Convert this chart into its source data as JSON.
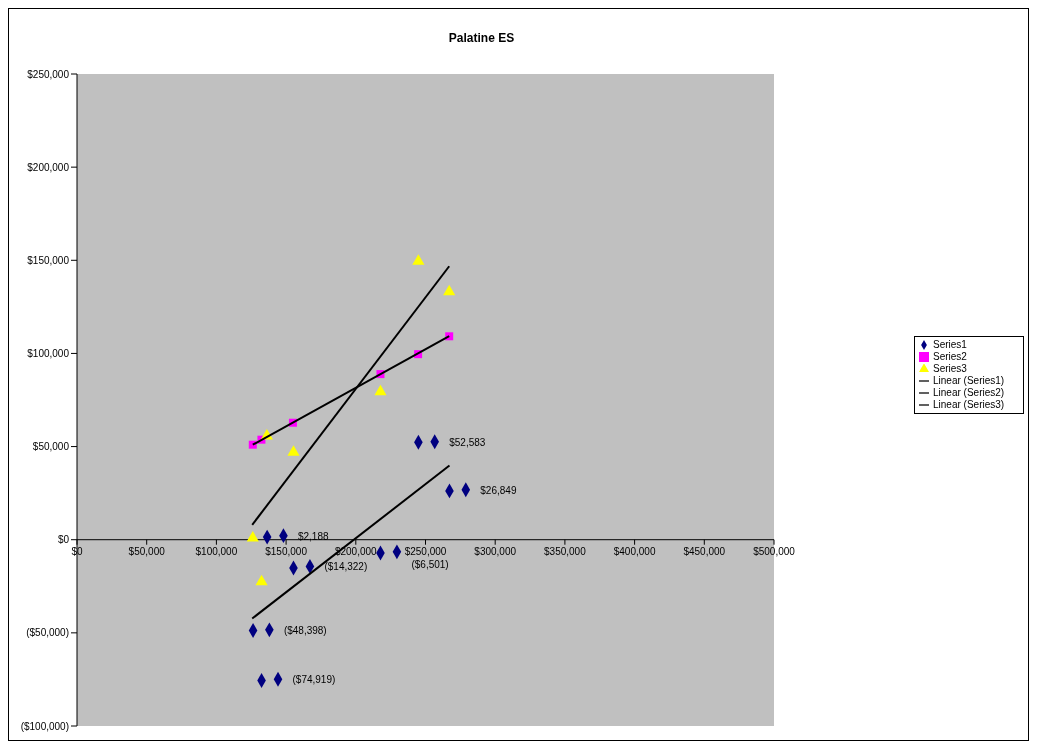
{
  "chart_data": {
    "type": "scatter",
    "title": "Palatine ES",
    "legend": "right",
    "grid": false,
    "xlim": [
      0,
      500000
    ],
    "xticks": [
      {
        "value": 0,
        "label": "$0"
      },
      {
        "value": 50000,
        "label": "$50,000"
      },
      {
        "value": 100000,
        "label": "$100,000"
      },
      {
        "value": 150000,
        "label": "$150,000"
      },
      {
        "value": 200000,
        "label": "$200,000"
      },
      {
        "value": 250000,
        "label": "$250,000"
      },
      {
        "value": 300000,
        "label": "$300,000"
      },
      {
        "value": 350000,
        "label": "$350,000"
      },
      {
        "value": 400000,
        "label": "$400,000"
      },
      {
        "value": 450000,
        "label": "$450,000"
      },
      {
        "value": 500000,
        "label": "$500,000"
      }
    ],
    "ylim": [
      -100000,
      250000
    ],
    "yticks": [
      {
        "value": -100000,
        "label": "($100,000)"
      },
      {
        "value": -50000,
        "label": "($50,000)"
      },
      {
        "value": 0,
        "label": "$0"
      },
      {
        "value": 50000,
        "label": "$50,000"
      },
      {
        "value": 100000,
        "label": "$100,000"
      },
      {
        "value": 150000,
        "label": "$150,000"
      },
      {
        "value": 200000,
        "label": "$200,000"
      },
      {
        "value": 250000,
        "label": "$250,000"
      }
    ],
    "series": [
      {
        "name": "Series1",
        "marker": "diamond",
        "color": "#000080",
        "x": [
          136400,
          148100,
          155300,
          167100,
          126300,
          138000,
          132400,
          144200,
          217700,
          229500,
          244900,
          256600,
          267200,
          278900
        ],
        "values": [
          1400,
          2188,
          -15200,
          -14322,
          -48700,
          -48398,
          -75600,
          -74919,
          -7100,
          -6501,
          52300,
          52583,
          26200,
          26849
        ],
        "value_labels": [
          null,
          "$2,188",
          null,
          "($14,322)",
          null,
          "($48,398)",
          null,
          "($74,919)",
          null,
          "($6,501)",
          null,
          "$52,583",
          null,
          "$26,849"
        ]
      },
      {
        "name": "Series2",
        "marker": "square",
        "color": "#ff00ff",
        "x": [
          126100,
          132300,
          154900,
          217700,
          244700,
          267000
        ],
        "values": [
          51000,
          53700,
          62800,
          88900,
          99600,
          109200
        ]
      },
      {
        "name": "Series3",
        "marker": "triangle",
        "color": "#ffff00",
        "x": [
          126100,
          132400,
          136200,
          155300,
          217700,
          244900,
          267000
        ],
        "values": [
          900,
          -22600,
          55700,
          46900,
          79400,
          149500,
          133100
        ]
      },
      {
        "name": "Linear (Series1)",
        "type": "line",
        "color": "#000000",
        "x": [
          125700,
          267200
        ],
        "values": [
          -42300,
          39800
        ]
      },
      {
        "name": "Linear (Series2)",
        "type": "line",
        "color": "#000000",
        "x": [
          126100,
          267000
        ],
        "values": [
          51000,
          109300
        ]
      },
      {
        "name": "Linear (Series3)",
        "type": "line",
        "color": "#000000",
        "x": [
          125700,
          267000
        ],
        "values": [
          8000,
          146800
        ]
      }
    ]
  }
}
